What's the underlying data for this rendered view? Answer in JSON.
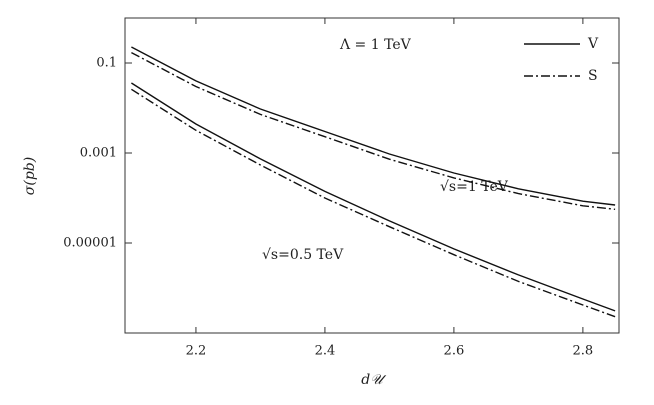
{
  "chart_data": {
    "type": "line",
    "xlabel": "d𝒰",
    "ylabel": "σ(pb)",
    "annotation": "Λ = 1 TeV",
    "log_y": true,
    "x": [
      2.1,
      2.2,
      2.3,
      2.4,
      2.5,
      2.6,
      2.7,
      2.8,
      2.85
    ],
    "curve_labels": [
      "√s=1 TeV",
      "√s=0.5 TeV"
    ],
    "series": [
      {
        "name": "V",
        "dash": "solid",
        "color": "#111",
        "curves": [
          [
            0.227,
            0.04,
            0.0095,
            0.003,
            0.00095,
            0.00036,
            0.00016,
            8.5e-05,
            7e-05
          ],
          [
            0.036,
            0.0044,
            0.00074,
            0.00014,
            3.1e-05,
            7.4e-06,
            1.95e-06,
            5.7e-07,
            3.1e-07
          ]
        ]
      },
      {
        "name": "S",
        "dash": "dashdot",
        "color": "#111",
        "curves": [
          [
            0.17,
            0.03,
            0.0072,
            0.0023,
            0.00073,
            0.00028,
            0.000125,
            6.7e-05,
            5.6e-05
          ],
          [
            0.026,
            0.0032,
            0.00054,
            0.0001,
            2.3e-05,
            5.5e-06,
            1.4e-06,
            4.2e-07,
            2.3e-07
          ]
        ]
      }
    ],
    "xlim": [
      2.09,
      2.856
    ],
    "ylim": [
      1e-07,
      1
    ],
    "xticks": [
      2.2,
      2.4,
      2.6,
      2.8
    ],
    "yticks": [
      0.1,
      0.001,
      {
        "value": 1e-05,
        "label": "0.00001"
      }
    ]
  }
}
